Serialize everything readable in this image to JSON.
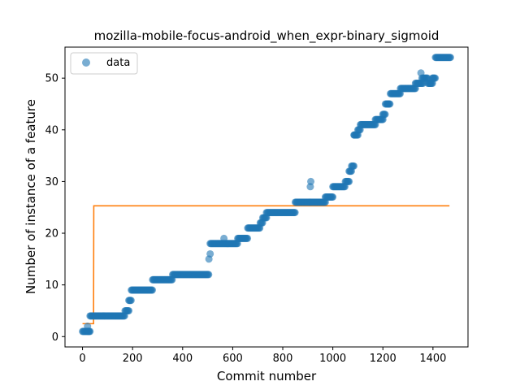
{
  "chart_data": {
    "type": "scatter",
    "title": "mozilla-mobile-focus-android_when_expr-binary_sigmoid",
    "xlabel": "Commit number",
    "ylabel": "Number of instance of a feature",
    "xlim": [
      -70,
      1540
    ],
    "ylim": [
      -2,
      56
    ],
    "xticks": [
      0,
      200,
      400,
      600,
      800,
      1000,
      1200,
      1400
    ],
    "yticks": [
      0,
      10,
      20,
      30,
      40,
      50
    ],
    "grid": false,
    "legend": {
      "position": "top-left",
      "entries": [
        "data"
      ]
    },
    "colors": {
      "data": "#1f77b4",
      "fit": "#ff7f0e"
    },
    "series": [
      {
        "name": "data",
        "kind": "scatter",
        "steps": [
          {
            "from": 0,
            "to": 30,
            "y": 1
          },
          {
            "from": 30,
            "to": 170,
            "y": 4
          },
          {
            "from": 170,
            "to": 185,
            "y": 5
          },
          {
            "from": 185,
            "to": 195,
            "y": 7
          },
          {
            "from": 195,
            "to": 280,
            "y": 9
          },
          {
            "from": 280,
            "to": 360,
            "y": 11
          },
          {
            "from": 360,
            "to": 505,
            "y": 12
          },
          {
            "from": 510,
            "to": 580,
            "y": 18
          },
          {
            "from": 580,
            "to": 620,
            "y": 18
          },
          {
            "from": 620,
            "to": 660,
            "y": 19
          },
          {
            "from": 660,
            "to": 710,
            "y": 21
          },
          {
            "from": 710,
            "to": 720,
            "y": 22
          },
          {
            "from": 720,
            "to": 735,
            "y": 23
          },
          {
            "from": 735,
            "to": 850,
            "y": 24
          },
          {
            "from": 850,
            "to": 970,
            "y": 26
          },
          {
            "from": 970,
            "to": 1000,
            "y": 27
          },
          {
            "from": 1000,
            "to": 1050,
            "y": 29
          },
          {
            "from": 1050,
            "to": 1065,
            "y": 30
          },
          {
            "from": 1065,
            "to": 1075,
            "y": 32
          },
          {
            "from": 1075,
            "to": 1085,
            "y": 33
          },
          {
            "from": 1085,
            "to": 1100,
            "y": 39
          },
          {
            "from": 1100,
            "to": 1110,
            "y": 40
          },
          {
            "from": 1110,
            "to": 1170,
            "y": 41
          },
          {
            "from": 1170,
            "to": 1200,
            "y": 42
          },
          {
            "from": 1200,
            "to": 1210,
            "y": 43
          },
          {
            "from": 1210,
            "to": 1230,
            "y": 45
          },
          {
            "from": 1230,
            "to": 1270,
            "y": 47
          },
          {
            "from": 1270,
            "to": 1330,
            "y": 48
          },
          {
            "from": 1330,
            "to": 1360,
            "y": 49
          },
          {
            "from": 1360,
            "to": 1380,
            "y": 50
          },
          {
            "from": 1380,
            "to": 1400,
            "y": 49
          },
          {
            "from": 1400,
            "to": 1410,
            "y": 50
          },
          {
            "from": 1410,
            "to": 1470,
            "y": 54
          }
        ],
        "extra_points": [
          [
            20,
            2
          ],
          [
            25,
            1
          ],
          [
            505,
            15
          ],
          [
            510,
            16
          ],
          [
            565,
            19
          ],
          [
            910,
            29
          ],
          [
            912,
            30
          ],
          [
            1085,
            39
          ],
          [
            1222,
            45
          ],
          [
            1352,
            51
          ],
          [
            1356,
            50
          ],
          [
            1398,
            50
          ],
          [
            1388,
            49
          ]
        ]
      },
      {
        "name": "",
        "kind": "line",
        "points": [
          [
            0,
            2.5
          ],
          [
            44,
            2.5
          ],
          [
            45,
            25.3
          ],
          [
            1466,
            25.3
          ]
        ]
      }
    ]
  }
}
